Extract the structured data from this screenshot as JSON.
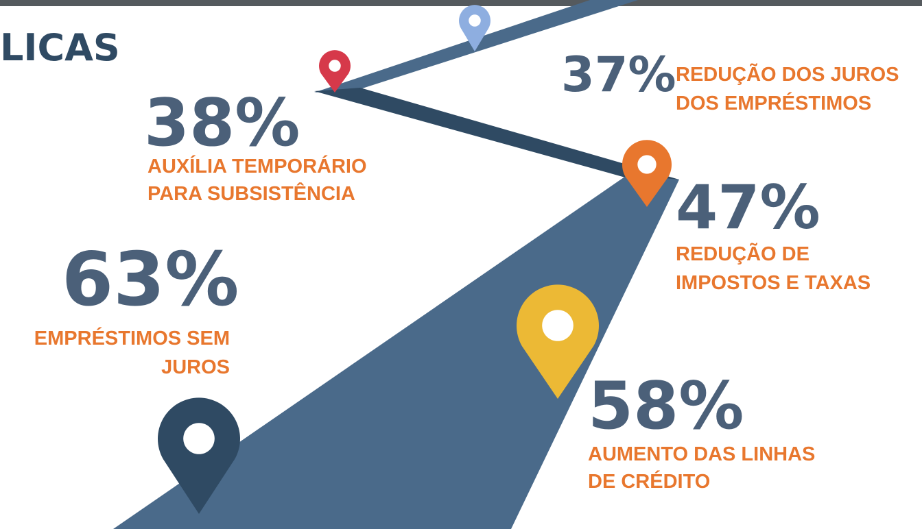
{
  "header": {
    "title": "LICAS"
  },
  "items": [
    {
      "value": "37%",
      "label": [
        "REDUÇÃO DOS JUROS",
        "DOS EMPRÉSTIMOS"
      ]
    },
    {
      "value": "38%",
      "label": [
        "AUXÍLIA TEMPORÁRIO",
        "PARA SUBSISTÊNCIA"
      ]
    },
    {
      "value": "47%",
      "label": [
        "REDUÇÃO DE",
        "IMPOSTOS E TAXAS"
      ]
    },
    {
      "value": "63%",
      "label": [
        "EMPRÉSTIMOS SEM",
        "JUROS"
      ]
    },
    {
      "value": "58%",
      "label": [
        "AUMENTO DAS LINHAS",
        "DE CRÉDITO"
      ]
    }
  ]
}
